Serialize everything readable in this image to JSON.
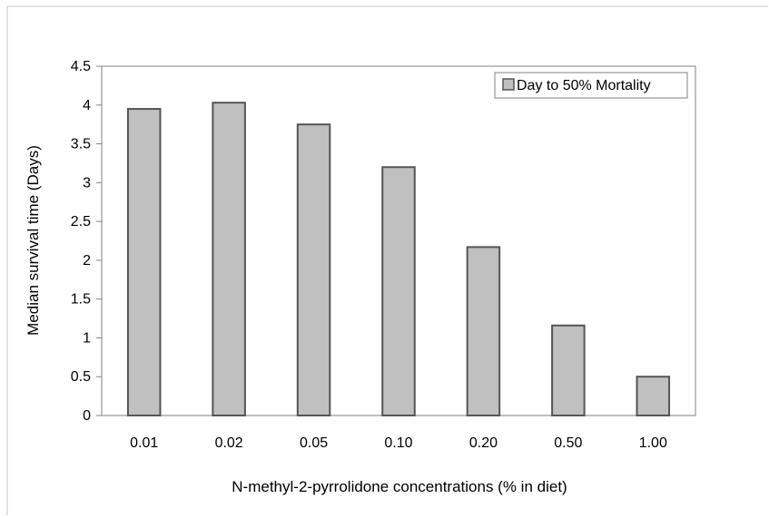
{
  "chart_data": {
    "type": "bar",
    "categories": [
      "0.01",
      "0.02",
      "0.05",
      "0.10",
      "0.20",
      "0.50",
      "1.00"
    ],
    "series": [
      {
        "name": "Day to 50% Mortality",
        "values": [
          3.95,
          4.03,
          3.75,
          3.2,
          2.17,
          1.16,
          0.5
        ]
      }
    ],
    "xlabel": "N-methyl-2-pyrrolidone concentrations  (% in diet)",
    "ylabel": "Median survival time (Days)",
    "ylim": [
      0,
      4.5
    ],
    "yticks": [
      "0",
      "0.5",
      "1",
      "1.5",
      "2",
      "2.5",
      "3",
      "3.5",
      "4",
      "4.5"
    ],
    "grid": false,
    "legend_position": "top-right",
    "colors": {
      "bar_fill": "#c0c0c0",
      "bar_stroke": "#555555",
      "axis": "#808080",
      "frame": "#d9d9d9"
    }
  }
}
